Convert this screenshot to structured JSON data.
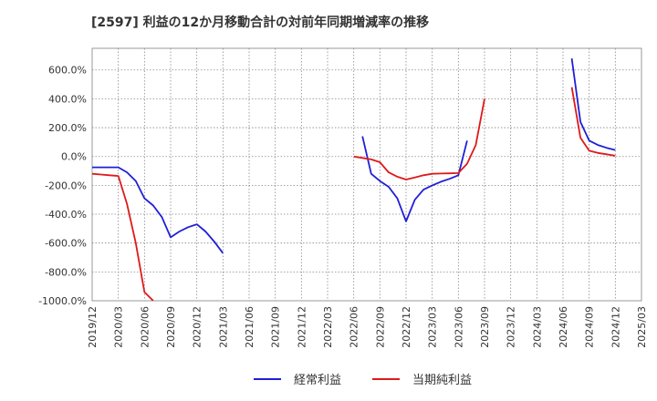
{
  "chart_data": {
    "type": "line",
    "title": "[2597]  利益の12か月移動合計の対前年同期増減率の推移",
    "xlabel": "",
    "ylabel": "",
    "ylim": [
      -1000,
      750
    ],
    "yticks": [
      600,
      400,
      200,
      0,
      -200,
      -400,
      -600,
      -800,
      -1000
    ],
    "ytick_labels": [
      "600.0%",
      "400.0%",
      "200.0%",
      "0.0%",
      "-200.0%",
      "-400.0%",
      "-600.0%",
      "-800.0%",
      "-1000.0%"
    ],
    "xtick_labels": [
      "2019/12",
      "2020/03",
      "2020/06",
      "2020/09",
      "2020/12",
      "2021/03",
      "2021/06",
      "2021/09",
      "2021/12",
      "2022/03",
      "2022/06",
      "2022/09",
      "2022/12",
      "2023/03",
      "2023/06",
      "2023/09",
      "2023/12",
      "2024/03",
      "2024/06",
      "2024/09",
      "2024/12",
      "2025/03"
    ],
    "x_range_months": [
      0,
      63
    ],
    "grid": true,
    "legend_position": "bottom-center",
    "series": [
      {
        "name": "経常利益",
        "color": "#1f1fd6",
        "segments": [
          [
            [
              0,
              -75
            ],
            [
              1,
              -75
            ],
            [
              2,
              -75
            ],
            [
              3,
              -75
            ],
            [
              4,
              -110
            ],
            [
              5,
              -170
            ],
            [
              6,
              -290
            ],
            [
              7,
              -340
            ],
            [
              8,
              -420
            ],
            [
              9,
              -560
            ],
            [
              10,
              -520
            ],
            [
              11,
              -490
            ],
            [
              12,
              -470
            ],
            [
              13,
              -520
            ],
            [
              14,
              -590
            ],
            [
              15,
              -670
            ]
          ],
          [
            [
              31,
              140
            ],
            [
              32,
              -120
            ],
            [
              33,
              -170
            ],
            [
              34,
              -210
            ],
            [
              35,
              -290
            ],
            [
              36,
              -450
            ],
            [
              37,
              -300
            ],
            [
              38,
              -230
            ],
            [
              39,
              -200
            ],
            [
              40,
              -175
            ],
            [
              41,
              -155
            ],
            [
              42,
              -130
            ],
            [
              43,
              110
            ]
          ],
          [
            [
              55,
              680
            ],
            [
              56,
              240
            ],
            [
              57,
              110
            ],
            [
              58,
              80
            ],
            [
              59,
              60
            ],
            [
              60,
              45
            ]
          ]
        ]
      },
      {
        "name": "当期純利益",
        "color": "#dd1a1a",
        "segments": [
          [
            [
              0,
              -120
            ],
            [
              1,
              -125
            ],
            [
              2,
              -130
            ],
            [
              3,
              -135
            ],
            [
              4,
              -330
            ],
            [
              5,
              -600
            ],
            [
              6,
              -940
            ],
            [
              7,
              -1000
            ]
          ],
          [
            [
              30,
              0
            ],
            [
              31,
              -10
            ],
            [
              32,
              -20
            ],
            [
              33,
              -40
            ],
            [
              34,
              -110
            ],
            [
              35,
              -140
            ],
            [
              36,
              -160
            ],
            [
              37,
              -145
            ],
            [
              38,
              -130
            ],
            [
              39,
              -120
            ],
            [
              40,
              -118
            ],
            [
              41,
              -117
            ],
            [
              42,
              -115
            ],
            [
              43,
              -50
            ],
            [
              44,
              80
            ],
            [
              45,
              400
            ]
          ],
          [
            [
              55,
              480
            ],
            [
              56,
              130
            ],
            [
              57,
              40
            ],
            [
              58,
              25
            ],
            [
              59,
              15
            ],
            [
              60,
              5
            ]
          ]
        ]
      }
    ]
  }
}
